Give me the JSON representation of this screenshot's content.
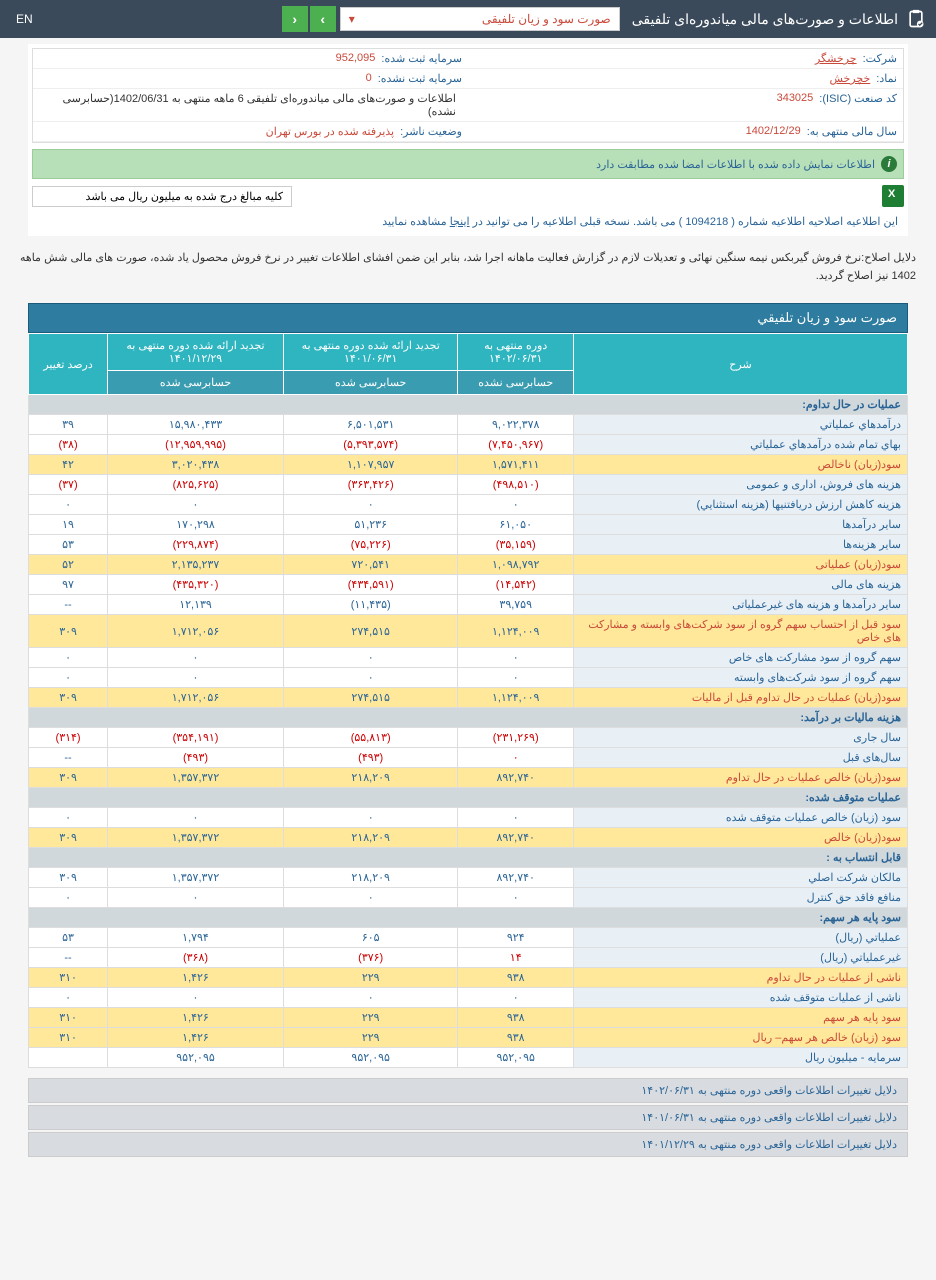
{
  "topbar": {
    "title": "اطلاعات و صورت‌های مالی میاندوره‌ای تلفیقی",
    "dropdown": "صورت سود و زیان تلفیقی",
    "lang": "EN"
  },
  "info": {
    "company_l": "شرکت:",
    "company_v": "چرخشگر",
    "symbol_l": "نماد:",
    "symbol_v": "خچرخش",
    "isic_l": "کد صنعت (ISIC):",
    "isic_v": "343025",
    "year_l": "سال مالی منتهی به:",
    "year_v": "1402/12/29",
    "cap_reg_l": "سرمایه ثبت شده:",
    "cap_reg_v": "952,095",
    "cap_unreg_l": "سرمایه ثبت نشده:",
    "cap_unreg_v": "0",
    "period_v": "اطلاعات و صورت‌های مالی میاندوره‌ای تلفیقی 6 ماهه منتهی به 1402/06/31(حسابرسی نشده)",
    "status_l": "وضعیت ناشر:",
    "status_v": "پذیرفته شده در بورس تهران"
  },
  "banner": "اطلاعات نمایش داده شده با اطلاعات امضا شده مطابقت دارد",
  "note": "کلیه مبالغ درج شده به میلیون ریال می باشد",
  "notice_pre": "این اطلاعیه اصلاحیه اطلاعیه شماره ( 1094218 ) می باشد. نسخه قبلی اطلاعیه را می توانید در ",
  "notice_link": "اینجا",
  "notice_post": " مشاهده نمایید",
  "reason": "دلایل اصلاح:نرخ فروش گیربکس نیمه سنگین نهائی و تعدیلات لازم در گزارش فعالیت ماهانه اجرا شد، بنابر این ضمن افشای اطلاعات تغییر در نرخ فروش محصول یاد شده، صورت های مالی شش ماهه 1402 نیز اصلاح گردید.",
  "table_title": "صورت سود و زيان تلفيقي",
  "headers": {
    "desc": "شرح",
    "c1": "دوره منتهی به ۱۴۰۲/۰۶/۳۱",
    "c2": "تجدید ارائه شده دوره منتهی به ۱۴۰۱/۰۶/۳۱",
    "c3": "تجدید ارائه شده دوره منتهی به ۱۴۰۱/۱۲/۲۹",
    "pct": "درصد تغییر",
    "s1": "حسابرسی نشده",
    "s2": "حسابرسی شده",
    "s3": "حسابرسی شده"
  },
  "rows": [
    {
      "t": "section",
      "d": "عمليات در حال تداوم:"
    },
    {
      "t": "r",
      "d": "درآمدهاي عملياتي",
      "c1": "۹,۰۲۲,۳۷۸",
      "c2": "۶,۵۰۱,۵۳۱",
      "c3": "۱۵,۹۸۰,۴۳۳",
      "p": "۳۹"
    },
    {
      "t": "r",
      "d": "بهاي تمام شده درآمدهاي عملياتي",
      "c1": "(۷,۴۵۰,۹۶۷)",
      "c2": "(۵,۳۹۳,۵۷۴)",
      "c3": "(۱۲,۹۵۹,۹۹۵)",
      "p": "(۳۸)",
      "neg": true
    },
    {
      "t": "hl",
      "d": "سود(زيان) ناخالص",
      "c1": "۱,۵۷۱,۴۱۱",
      "c2": "۱,۱۰۷,۹۵۷",
      "c3": "۳,۰۲۰,۴۳۸",
      "p": "۴۲"
    },
    {
      "t": "r",
      "d": "هزينه هاى فروش، ادارى و عمومى",
      "c1": "(۴۹۸,۵۱۰)",
      "c2": "(۳۶۳,۴۲۶)",
      "c3": "(۸۲۵,۶۲۵)",
      "p": "(۳۷)",
      "neg": true
    },
    {
      "t": "r",
      "d": "هزينه کاهش ارزش دريافتنيها (هزينه استثنايي)",
      "c1": "۰",
      "c2": "۰",
      "c3": "۰",
      "p": "۰"
    },
    {
      "t": "r",
      "d": "ساير درآمدها",
      "c1": "۶۱,۰۵۰",
      "c2": "۵۱,۲۳۶",
      "c3": "۱۷۰,۲۹۸",
      "p": "۱۹"
    },
    {
      "t": "r",
      "d": "ساير هزينه‌ها",
      "c1": "(۳۵,۱۵۹)",
      "c2": "(۷۵,۲۲۶)",
      "c3": "(۲۲۹,۸۷۴)",
      "p": "۵۳",
      "neg": true
    },
    {
      "t": "hl",
      "d": "سود(زيان) عملياتى",
      "c1": "۱,۰۹۸,۷۹۲",
      "c2": "۷۲۰,۵۴۱",
      "c3": "۲,۱۳۵,۲۳۷",
      "p": "۵۲"
    },
    {
      "t": "r",
      "d": "هزينه هاى مالى",
      "c1": "(۱۴,۵۴۲)",
      "c2": "(۴۳۴,۵۹۱)",
      "c3": "(۴۳۵,۳۲۰)",
      "p": "۹۷",
      "neg": true
    },
    {
      "t": "r",
      "d": "ساير درآمدها و هزينه هاى غيرعملياتى",
      "c1": "۳۹,۷۵۹",
      "c2": "(۱۱,۴۳۵)",
      "c3": "۱۲,۱۳۹",
      "p": "--"
    },
    {
      "t": "hl",
      "d": "سود قبل از احتساب سهم گروه از سود شرکت‌هاى وابسته و مشارکت هاى خاص",
      "c1": "۱,۱۲۴,۰۰۹",
      "c2": "۲۷۴,۵۱۵",
      "c3": "۱,۷۱۲,۰۵۶",
      "p": "۳۰۹"
    },
    {
      "t": "r",
      "d": "سهم گروه از سود مشارکت هاى خاص",
      "c1": "۰",
      "c2": "۰",
      "c3": "۰",
      "p": "۰"
    },
    {
      "t": "r",
      "d": "سهم گروه از سود شرکت‌هاى وابسته",
      "c1": "۰",
      "c2": "۰",
      "c3": "۰",
      "p": "۰"
    },
    {
      "t": "hl",
      "d": "سود(زيان) عمليات در حال تداوم قبل از ماليات",
      "c1": "۱,۱۲۴,۰۰۹",
      "c2": "۲۷۴,۵۱۵",
      "c3": "۱,۷۱۲,۰۵۶",
      "p": "۳۰۹"
    },
    {
      "t": "section",
      "d": "هزينه ماليات بر درآمد:"
    },
    {
      "t": "r",
      "d": "سال جارى",
      "c1": "(۲۳۱,۲۶۹)",
      "c2": "(۵۵,۸۱۳)",
      "c3": "(۳۵۴,۱۹۱)",
      "p": "(۳۱۴)",
      "neg": true
    },
    {
      "t": "r",
      "d": "سال‌هاى قبل",
      "c1": "۰",
      "c2": "(۴۹۳)",
      "c3": "(۴۹۳)",
      "p": "--",
      "neg": true
    },
    {
      "t": "hl",
      "d": "سود(زيان) خالص عمليات در حال تداوم",
      "c1": "۸۹۲,۷۴۰",
      "c2": "۲۱۸,۲۰۹",
      "c3": "۱,۳۵۷,۳۷۲",
      "p": "۳۰۹"
    },
    {
      "t": "section",
      "d": "عمليات متوقف شده:"
    },
    {
      "t": "r",
      "d": "سود (زيان) خالص عمليات متوقف شده",
      "c1": "۰",
      "c2": "۰",
      "c3": "۰",
      "p": "۰"
    },
    {
      "t": "hl",
      "d": "سود(زيان) خالص",
      "c1": "۸۹۲,۷۴۰",
      "c2": "۲۱۸,۲۰۹",
      "c3": "۱,۳۵۷,۳۷۲",
      "p": "۳۰۹"
    },
    {
      "t": "section",
      "d": "قابل انتساب به :"
    },
    {
      "t": "r",
      "d": "مالکان شرکت اصلي",
      "c1": "۸۹۲,۷۴۰",
      "c2": "۲۱۸,۲۰۹",
      "c3": "۱,۳۵۷,۳۷۲",
      "p": "۳۰۹"
    },
    {
      "t": "r",
      "d": "منافع فاقد حق کنترل",
      "c1": "۰",
      "c2": "۰",
      "c3": "۰",
      "p": "۰"
    },
    {
      "t": "section",
      "d": "سود پايه هر سهم:"
    },
    {
      "t": "r",
      "d": "عملياتي (ريال)",
      "c1": "۹۲۴",
      "c2": "۶۰۵",
      "c3": "۱,۷۹۴",
      "p": "۵۳"
    },
    {
      "t": "r",
      "d": "غيرعملياتي (ريال)",
      "c1": "۱۴",
      "c2": "(۳۷۶)",
      "c3": "(۳۶۸)",
      "p": "--",
      "neg": true
    },
    {
      "t": "hl",
      "d": "ناشى از عمليات در حال تداوم",
      "c1": "۹۳۸",
      "c2": "۲۲۹",
      "c3": "۱,۴۲۶",
      "p": "۳۱۰"
    },
    {
      "t": "r",
      "d": "ناشى از عمليات متوقف شده",
      "c1": "۰",
      "c2": "۰",
      "c3": "۰",
      "p": "۰"
    },
    {
      "t": "hl",
      "d": "سود پايه هر سهم",
      "c1": "۹۳۸",
      "c2": "۲۲۹",
      "c3": "۱,۴۲۶",
      "p": "۳۱۰"
    },
    {
      "t": "hl",
      "d": "سود (زيان) خالص هر سهم– ريال",
      "c1": "۹۳۸",
      "c2": "۲۲۹",
      "c3": "۱,۴۲۶",
      "p": "۳۱۰"
    },
    {
      "t": "r",
      "d": "سرمايه - ميليون ريال",
      "c1": "۹۵۲,۰۹۵",
      "c2": "۹۵۲,۰۹۵",
      "c3": "۹۵۲,۰۹۵",
      "p": ""
    }
  ],
  "footer": [
    "دلایل تغییرات اطلاعات واقعی دوره منتهی به ۱۴۰۲/۰۶/۳۱",
    "دلایل تغییرات اطلاعات واقعی دوره منتهی به ۱۴۰۱/۰۶/۳۱",
    "دلایل تغییرات اطلاعات واقعی دوره منتهی به ۱۴۰۱/۱۲/۲۹"
  ]
}
